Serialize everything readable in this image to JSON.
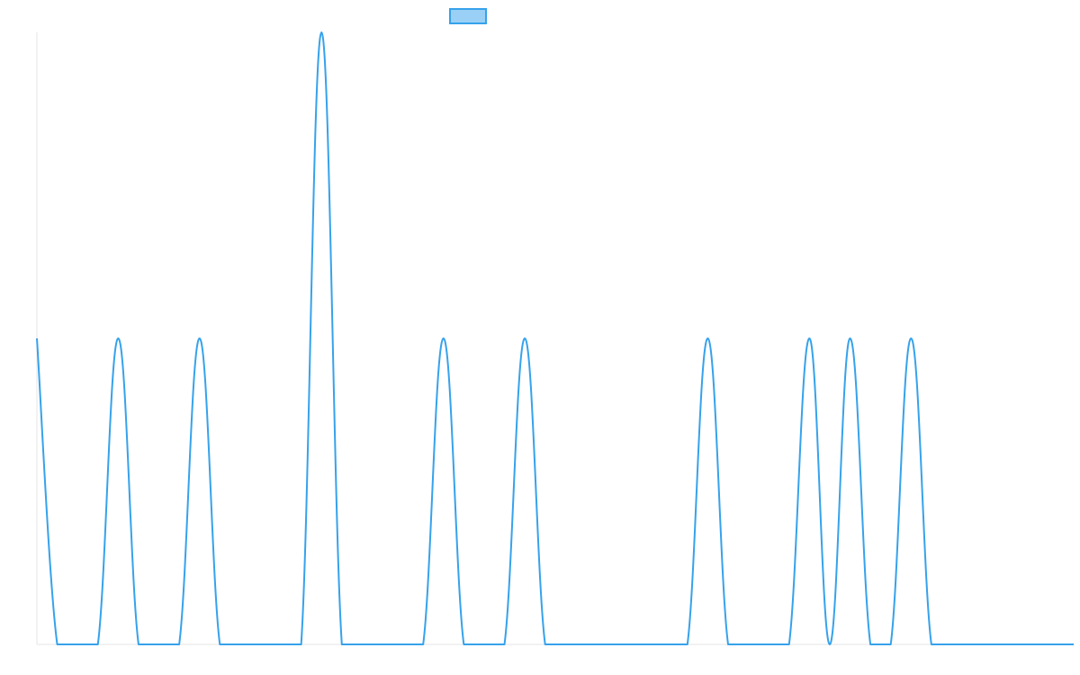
{
  "chart_data": {
    "type": "line",
    "title": "",
    "xlabel": "",
    "ylabel": "",
    "legend": {
      "placement": "top-center",
      "entries": [
        {
          "name": "",
          "color": "#36a2eb",
          "fill": "#9ad0f5"
        }
      ]
    },
    "grid": false,
    "xlim": [
      0,
      51
    ],
    "ylim": [
      0,
      2
    ],
    "series": [
      {
        "name": "",
        "color": "#36a2eb",
        "x": [
          0,
          1,
          2,
          3,
          4,
          5,
          6,
          7,
          8,
          9,
          10,
          11,
          12,
          13,
          14,
          15,
          16,
          17,
          18,
          19,
          20,
          21,
          22,
          23,
          24,
          25,
          26,
          27,
          28,
          29,
          30,
          31,
          32,
          33,
          34,
          35,
          36,
          37,
          38,
          39,
          40,
          41,
          42,
          43,
          44,
          45,
          46,
          47,
          48,
          49,
          50,
          51
        ],
        "values": [
          1,
          0,
          0,
          0,
          1,
          0,
          0,
          0,
          1,
          0,
          0,
          0,
          0,
          0,
          2,
          0,
          0,
          0,
          0,
          0,
          1,
          0,
          0,
          0,
          1,
          0,
          0,
          0,
          0,
          0,
          0,
          0,
          0,
          1,
          0,
          0,
          0,
          0,
          1,
          0,
          1,
          0,
          0,
          1,
          0,
          0,
          0,
          0,
          0,
          0,
          0,
          0
        ]
      }
    ]
  }
}
